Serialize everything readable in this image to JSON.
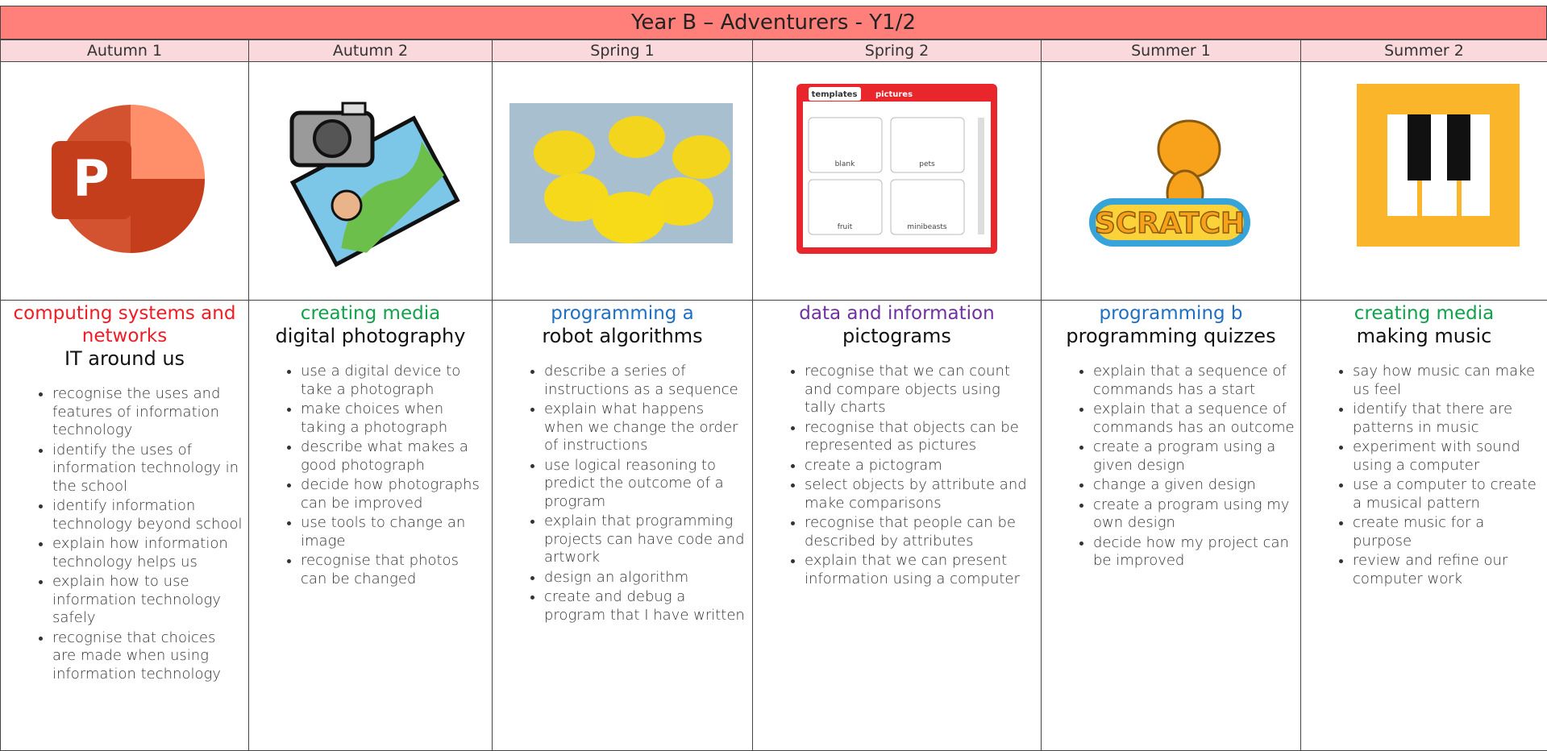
{
  "header": {
    "title": "Year B – Adventurers - Y1/2"
  },
  "columns": [
    {
      "term": "Autumn 1",
      "topic": "computing systems and networks",
      "unit": "IT around us",
      "image_text": [
        "P"
      ],
      "bullets": [
        "recognise the uses and features of information technology",
        "identify the uses of information technology in the school",
        "identify information technology beyond school",
        "explain how information technology helps us",
        "explain how to use information technology safely",
        "recognise that choices are made when using information technology"
      ]
    },
    {
      "term": "Autumn 2",
      "topic": "creating media",
      "unit": "digital photography",
      "image_text": [],
      "bullets": [
        "use a digital device to take a photograph",
        "make choices when taking a photograph",
        "describe what makes a good photograph",
        "decide how photographs can be improved",
        "use tools to change an image",
        "recognise that photos can be changed"
      ]
    },
    {
      "term": "Spring 1",
      "topic": "programming a",
      "unit": "robot algorithms",
      "image_text": [],
      "bullets": [
        "describe a series of instructions as a sequence",
        "explain what happens when we change the order of instructions",
        "use logical reasoning to predict the outcome of a program",
        "explain that programming projects can have code and artwork",
        "design an algorithm",
        "create and debug a program that I have written"
      ]
    },
    {
      "term": "Spring 2",
      "topic": "data and information",
      "unit": "pictograms",
      "image_text": [
        "templates",
        "pictures",
        "blank",
        "pets",
        "fruit",
        "minibeasts"
      ],
      "bullets": [
        "recognise that we can count and compare objects using tally charts",
        "recognise that objects can be represented as pictures",
        "create a pictogram",
        "select objects by attribute and make comparisons",
        "recognise that people can be described by attributes",
        "explain that we can present information using a computer"
      ]
    },
    {
      "term": "Summer 1",
      "topic": "programming b",
      "unit": "programming quizzes",
      "image_text": [
        "SCRATCH"
      ],
      "bullets": [
        "explain that a sequence of commands has a start",
        "explain that a sequence of commands has an outcome",
        "create a program using a given design",
        "change a given design",
        "create a program using my own design",
        "decide how my project can be improved"
      ]
    },
    {
      "term": "Summer 2",
      "topic": "creating media",
      "unit": "making music",
      "image_text": [],
      "bullets": [
        "say how music can make us feel",
        "identify that there are patterns in music",
        "experiment with sound using a computer",
        "use a computer to create a musical pattern",
        "create music for a purpose",
        "review and refine our computer work"
      ]
    }
  ]
}
